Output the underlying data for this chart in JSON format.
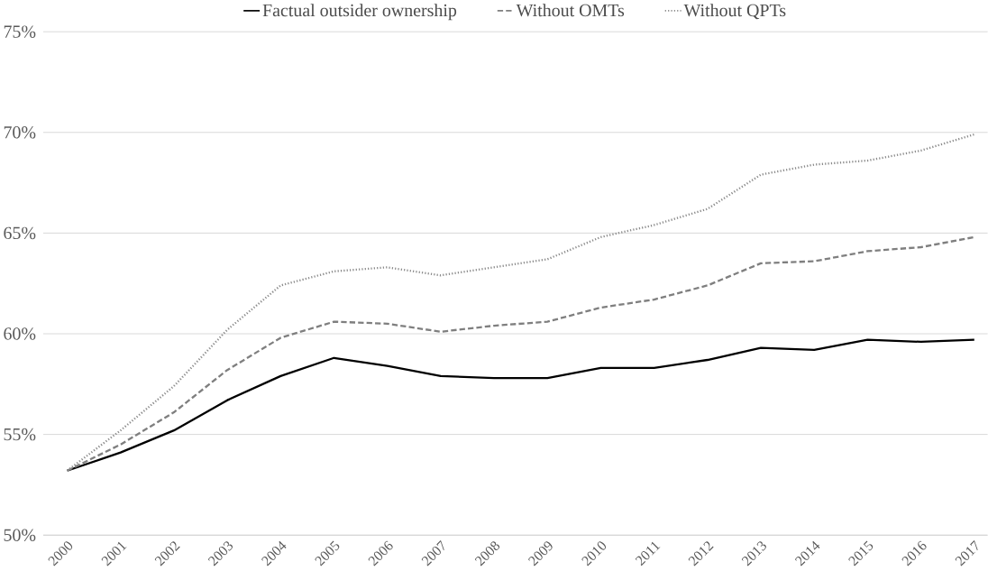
{
  "chart_data": {
    "type": "line",
    "categories": [
      "2000",
      "2001",
      "2002",
      "2003",
      "2004",
      "2005",
      "2006",
      "2007",
      "2008",
      "2009",
      "2010",
      "2011",
      "2012",
      "2013",
      "2014",
      "2015",
      "2016",
      "2017"
    ],
    "series": [
      {
        "name": "Factual outsider ownership",
        "color": "#000000",
        "line_style": "solid",
        "values": [
          53.2,
          54.1,
          55.2,
          56.7,
          57.9,
          58.8,
          58.4,
          57.9,
          57.8,
          57.8,
          58.3,
          58.3,
          58.7,
          59.3,
          59.2,
          59.7,
          59.6,
          59.7
        ]
      },
      {
        "name": "Without OMTs",
        "color": "#7f7f7f",
        "line_style": "dashed",
        "values": [
          53.2,
          54.5,
          56.1,
          58.2,
          59.8,
          60.6,
          60.5,
          60.1,
          60.4,
          60.6,
          61.3,
          61.7,
          62.4,
          63.5,
          63.6,
          64.1,
          64.3,
          64.8
        ]
      },
      {
        "name": "Without QPTs",
        "color": "#8c8c8c",
        "line_style": "dotted",
        "values": [
          53.2,
          55.2,
          57.4,
          60.2,
          62.4,
          63.1,
          63.3,
          62.9,
          63.3,
          63.7,
          64.8,
          65.4,
          66.2,
          67.9,
          68.4,
          68.6,
          69.1,
          69.9
        ]
      }
    ],
    "ylim": [
      50,
      75
    ],
    "yticks": [
      {
        "value": 50,
        "label": "50%"
      },
      {
        "value": 55,
        "label": "55%"
      },
      {
        "value": 60,
        "label": "60%"
      },
      {
        "value": 65,
        "label": "65%"
      },
      {
        "value": 70,
        "label": "70%"
      },
      {
        "value": 75,
        "label": "75%"
      }
    ],
    "grid": "y",
    "legend": "top",
    "marker": "none"
  }
}
